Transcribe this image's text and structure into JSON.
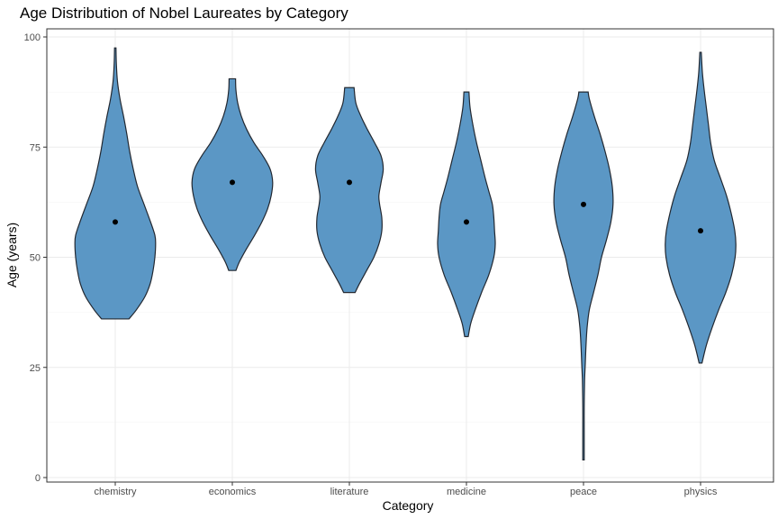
{
  "chart_data": {
    "type": "violin",
    "title": "Age Distribution of Nobel Laureates by Category",
    "xlabel": "Category",
    "ylabel": "Age (years)",
    "ylim": [
      0,
      100
    ],
    "yticks": [
      0,
      25,
      50,
      75,
      100
    ],
    "grid": true,
    "fill_color": "#5b97c5",
    "outline_color": "#222831",
    "categories": [
      "chemistry",
      "economics",
      "literature",
      "medicine",
      "peace",
      "physics"
    ],
    "series": [
      {
        "category": "chemistry",
        "min": 36,
        "max": 97.5,
        "point": 58,
        "profile": [
          [
            36,
            0.38
          ],
          [
            38,
            0.58
          ],
          [
            41,
            0.82
          ],
          [
            44,
            0.97
          ],
          [
            47,
            1.05
          ],
          [
            50,
            1.1
          ],
          [
            53,
            1.12
          ],
          [
            55,
            1.1
          ],
          [
            58,
            0.98
          ],
          [
            62,
            0.8
          ],
          [
            66,
            0.62
          ],
          [
            70,
            0.5
          ],
          [
            74,
            0.4
          ],
          [
            78,
            0.32
          ],
          [
            82,
            0.23
          ],
          [
            86,
            0.13
          ],
          [
            90,
            0.06
          ],
          [
            94,
            0.03
          ],
          [
            97.5,
            0.02
          ]
        ]
      },
      {
        "category": "economics",
        "min": 47,
        "max": 90.5,
        "point": 67,
        "profile": [
          [
            47,
            0.1
          ],
          [
            49,
            0.2
          ],
          [
            52,
            0.4
          ],
          [
            55,
            0.62
          ],
          [
            58,
            0.82
          ],
          [
            61,
            0.98
          ],
          [
            64,
            1.08
          ],
          [
            67,
            1.12
          ],
          [
            70,
            1.05
          ],
          [
            73,
            0.85
          ],
          [
            76,
            0.6
          ],
          [
            79,
            0.4
          ],
          [
            82,
            0.25
          ],
          [
            85,
            0.15
          ],
          [
            88,
            0.1
          ],
          [
            90.5,
            0.09
          ]
        ]
      },
      {
        "category": "literature",
        "min": 42,
        "max": 88.5,
        "point": 67,
        "profile": [
          [
            42,
            0.16
          ],
          [
            44,
            0.28
          ],
          [
            47,
            0.48
          ],
          [
            50,
            0.68
          ],
          [
            53,
            0.82
          ],
          [
            56,
            0.9
          ],
          [
            59,
            0.9
          ],
          [
            62,
            0.84
          ],
          [
            64,
            0.82
          ],
          [
            67,
            0.88
          ],
          [
            70,
            0.94
          ],
          [
            73,
            0.88
          ],
          [
            76,
            0.7
          ],
          [
            79,
            0.5
          ],
          [
            82,
            0.32
          ],
          [
            85,
            0.18
          ],
          [
            88.5,
            0.13
          ]
        ]
      },
      {
        "category": "medicine",
        "min": 32,
        "max": 87.5,
        "point": 58,
        "profile": [
          [
            32,
            0.05
          ],
          [
            35,
            0.12
          ],
          [
            38,
            0.24
          ],
          [
            42,
            0.42
          ],
          [
            46,
            0.62
          ],
          [
            50,
            0.76
          ],
          [
            53,
            0.8
          ],
          [
            56,
            0.78
          ],
          [
            59,
            0.76
          ],
          [
            62,
            0.72
          ],
          [
            65,
            0.62
          ],
          [
            68,
            0.52
          ],
          [
            72,
            0.4
          ],
          [
            76,
            0.28
          ],
          [
            80,
            0.18
          ],
          [
            84,
            0.1
          ],
          [
            87.5,
            0.07
          ]
        ]
      },
      {
        "category": "peace",
        "min": 4,
        "max": 87.5,
        "point": 62,
        "profile": [
          [
            4,
            0.02
          ],
          [
            10,
            0.02
          ],
          [
            16,
            0.02
          ],
          [
            22,
            0.03
          ],
          [
            26,
            0.05
          ],
          [
            30,
            0.07
          ],
          [
            34,
            0.1
          ],
          [
            38,
            0.16
          ],
          [
            42,
            0.28
          ],
          [
            46,
            0.4
          ],
          [
            50,
            0.5
          ],
          [
            54,
            0.64
          ],
          [
            58,
            0.76
          ],
          [
            62,
            0.82
          ],
          [
            66,
            0.8
          ],
          [
            70,
            0.72
          ],
          [
            74,
            0.6
          ],
          [
            78,
            0.46
          ],
          [
            82,
            0.3
          ],
          [
            86,
            0.16
          ],
          [
            87.5,
            0.13
          ]
        ]
      },
      {
        "category": "physics",
        "min": 26,
        "max": 96.5,
        "point": 56,
        "profile": [
          [
            26,
            0.04
          ],
          [
            30,
            0.16
          ],
          [
            34,
            0.32
          ],
          [
            38,
            0.5
          ],
          [
            42,
            0.7
          ],
          [
            46,
            0.86
          ],
          [
            50,
            0.96
          ],
          [
            53,
            0.98
          ],
          [
            56,
            0.95
          ],
          [
            60,
            0.85
          ],
          [
            64,
            0.72
          ],
          [
            68,
            0.55
          ],
          [
            72,
            0.38
          ],
          [
            76,
            0.28
          ],
          [
            80,
            0.22
          ],
          [
            84,
            0.16
          ],
          [
            88,
            0.1
          ],
          [
            92,
            0.05
          ],
          [
            96.5,
            0.02
          ]
        ]
      }
    ]
  }
}
